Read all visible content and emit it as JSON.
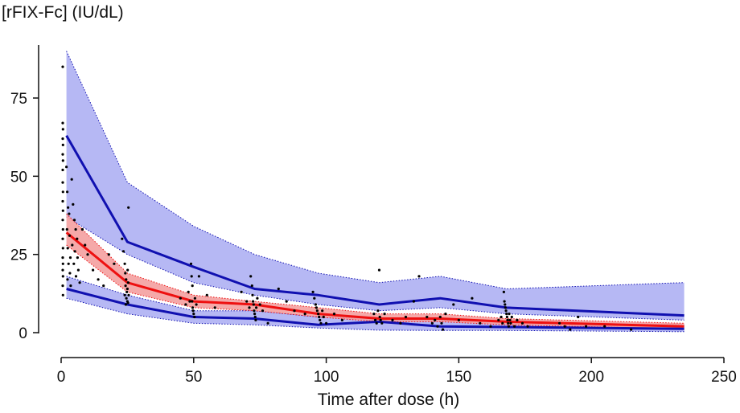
{
  "chart_data": {
    "type": "line",
    "title": "",
    "ylabel": "[rFIX-Fc] (IU/dL)",
    "xlabel": "Time after dose (h)",
    "xlim": [
      0,
      250
    ],
    "ylim": [
      0,
      95
    ],
    "xticks": [
      0,
      50,
      100,
      150,
      200,
      250
    ],
    "yticks": [
      0,
      25,
      50,
      75
    ],
    "grid": false,
    "colors": {
      "outer_band": "#aeb0f3",
      "outer_line": "#1010b0",
      "median_band": "#f4a0a0",
      "median_line": "#ee1010",
      "points": "#000000"
    },
    "bands": [
      {
        "role": "upper-percentile-band",
        "x": [
          2,
          25,
          50,
          73,
          97,
          120,
          143,
          168,
          235
        ],
        "lower": [
          1,
          1,
          1,
          1,
          1,
          1,
          1,
          1,
          1
        ],
        "upper": [
          1,
          1,
          1,
          1,
          1,
          1,
          1,
          1,
          1
        ]
      }
    ],
    "percentile_bands": {
      "x": [
        2,
        25,
        50,
        73,
        97,
        120,
        143,
        168,
        235
      ],
      "upper_band": {
        "low": [
          37,
          25,
          16,
          12,
          9,
          7,
          8,
          6,
          4
        ],
        "high": [
          90,
          48,
          34,
          25,
          19,
          16,
          18,
          14,
          16
        ]
      },
      "median_band": {
        "low": [
          28,
          13,
          8,
          7,
          5,
          3.5,
          3.5,
          2.5,
          1.2
        ],
        "high": [
          38,
          19,
          12,
          10,
          8,
          6,
          6,
          4.5,
          3
        ]
      },
      "lower_band": {
        "low": [
          11,
          6,
          3,
          2.5,
          1.5,
          0.8,
          0.7,
          0.7,
          0.3
        ],
        "high": [
          18,
          12,
          7,
          7,
          5,
          4.5,
          4,
          3.5,
          2.5
        ]
      }
    },
    "series": [
      {
        "role": "upper-percentile",
        "x": [
          2,
          25,
          50,
          73,
          97,
          120,
          143,
          168,
          235
        ],
        "y": [
          63,
          29,
          21,
          14,
          12,
          9,
          11,
          8,
          5.5
        ]
      },
      {
        "role": "median",
        "x": [
          2,
          25,
          50,
          73,
          97,
          120,
          143,
          168,
          235
        ],
        "y": [
          32,
          16,
          10,
          9,
          6,
          4.5,
          4.5,
          3.5,
          2
        ]
      },
      {
        "role": "lower-percentile",
        "x": [
          2,
          25,
          50,
          73,
          97,
          120,
          143,
          168,
          235
        ],
        "y": [
          14,
          9,
          5,
          4.5,
          2.5,
          3.5,
          2,
          1.8,
          1.2
        ]
      }
    ],
    "observations": [
      [
        0.6,
        85
      ],
      [
        0.6,
        67
      ],
      [
        0.7,
        65
      ],
      [
        0.6,
        62
      ],
      [
        0.7,
        60
      ],
      [
        0.6,
        57
      ],
      [
        0.7,
        55
      ],
      [
        0.6,
        52
      ],
      [
        0.6,
        48
      ],
      [
        0.7,
        45
      ],
      [
        0.6,
        42
      ],
      [
        0.7,
        39
      ],
      [
        0.6,
        36
      ],
      [
        0.7,
        33
      ],
      [
        0.6,
        30
      ],
      [
        0.7,
        27
      ],
      [
        0.6,
        24
      ],
      [
        0.7,
        22
      ],
      [
        0.6,
        20
      ],
      [
        0.7,
        18
      ],
      [
        0.6,
        15
      ],
      [
        0.7,
        12
      ],
      [
        2,
        53
      ],
      [
        2.3,
        45
      ],
      [
        2.6,
        40
      ],
      [
        3,
        38
      ],
      [
        2.2,
        33
      ],
      [
        3.2,
        31
      ],
      [
        2.5,
        27
      ],
      [
        3.5,
        24
      ],
      [
        2.8,
        22
      ],
      [
        3.3,
        19
      ],
      [
        2.4,
        17
      ],
      [
        3.6,
        15
      ],
      [
        4,
        49
      ],
      [
        4.5,
        41
      ],
      [
        5,
        36
      ],
      [
        5.5,
        33
      ],
      [
        6,
        30
      ],
      [
        4.2,
        28
      ],
      [
        5.2,
        26
      ],
      [
        6.2,
        24
      ],
      [
        4.8,
        22
      ],
      [
        6.5,
        20
      ],
      [
        5.6,
        18
      ],
      [
        7,
        16
      ],
      [
        8,
        33
      ],
      [
        9,
        28
      ],
      [
        10,
        25
      ],
      [
        12,
        20
      ],
      [
        14,
        17
      ],
      [
        16,
        15
      ],
      [
        18,
        25
      ],
      [
        20,
        22
      ],
      [
        23,
        30
      ],
      [
        23.5,
        26
      ],
      [
        24,
        22
      ],
      [
        24.2,
        19
      ],
      [
        24.5,
        17
      ],
      [
        24.3,
        15
      ],
      [
        24.8,
        13
      ],
      [
        24,
        12
      ],
      [
        24.6,
        11
      ],
      [
        25,
        10
      ],
      [
        24.4,
        9
      ],
      [
        25.2,
        9.5
      ],
      [
        25.5,
        12
      ],
      [
        25,
        14
      ],
      [
        25.3,
        16
      ],
      [
        25.1,
        20
      ],
      [
        25.4,
        40
      ],
      [
        45,
        11
      ],
      [
        47,
        9
      ],
      [
        48,
        13
      ],
      [
        48.5,
        10
      ],
      [
        49,
        22
      ],
      [
        49.2,
        18
      ],
      [
        49.5,
        15
      ],
      [
        49.4,
        10
      ],
      [
        49.6,
        8
      ],
      [
        49.8,
        7
      ],
      [
        50,
        6
      ],
      [
        50.3,
        5
      ],
      [
        50.5,
        11
      ],
      [
        51,
        9
      ],
      [
        52,
        18
      ],
      [
        55,
        12
      ],
      [
        58,
        8
      ],
      [
        68,
        13
      ],
      [
        70,
        10
      ],
      [
        71,
        8
      ],
      [
        71.5,
        18
      ],
      [
        72,
        15
      ],
      [
        72.2,
        12
      ],
      [
        72.4,
        10
      ],
      [
        72.6,
        9
      ],
      [
        72.8,
        7
      ],
      [
        73,
        6
      ],
      [
        73.2,
        5
      ],
      [
        73.4,
        4
      ],
      [
        73.6,
        8
      ],
      [
        74,
        11
      ],
      [
        75,
        9
      ],
      [
        76,
        7
      ],
      [
        78,
        3
      ],
      [
        82,
        14
      ],
      [
        85,
        10
      ],
      [
        88,
        7
      ],
      [
        92,
        6
      ],
      [
        95,
        13
      ],
      [
        95.5,
        11
      ],
      [
        96,
        9
      ],
      [
        96.3,
        8
      ],
      [
        96.6,
        7
      ],
      [
        97,
        6
      ],
      [
        97.3,
        5
      ],
      [
        97.6,
        4
      ],
      [
        98,
        3
      ],
      [
        98.5,
        7
      ],
      [
        99,
        5
      ],
      [
        100,
        3
      ],
      [
        103,
        6
      ],
      [
        106,
        4
      ],
      [
        118,
        6
      ],
      [
        118.5,
        4
      ],
      [
        119,
        3
      ],
      [
        119.5,
        7
      ],
      [
        120,
        20
      ],
      [
        120.2,
        5
      ],
      [
        120.5,
        4
      ],
      [
        121,
        3
      ],
      [
        122,
        6
      ],
      [
        125,
        4
      ],
      [
        128,
        3
      ],
      [
        130,
        5
      ],
      [
        133,
        10
      ],
      [
        135,
        18
      ],
      [
        138,
        5
      ],
      [
        140,
        3
      ],
      [
        141,
        4
      ],
      [
        142,
        2
      ],
      [
        143,
        5
      ],
      [
        143.5,
        3
      ],
      [
        144,
        1
      ],
      [
        145,
        6
      ],
      [
        148,
        9
      ],
      [
        150,
        4
      ],
      [
        155,
        11
      ],
      [
        158,
        3
      ],
      [
        162,
        2
      ],
      [
        165,
        4
      ],
      [
        166,
        5
      ],
      [
        166.5,
        3
      ],
      [
        167,
        13
      ],
      [
        167.2,
        10
      ],
      [
        167.4,
        9
      ],
      [
        167.6,
        8
      ],
      [
        167.8,
        7
      ],
      [
        168,
        6
      ],
      [
        168.2,
        5
      ],
      [
        168.4,
        4
      ],
      [
        168.6,
        3
      ],
      [
        168.8,
        2
      ],
      [
        169,
        6
      ],
      [
        169.3,
        4
      ],
      [
        169.6,
        3
      ],
      [
        170,
        5
      ],
      [
        171,
        2
      ],
      [
        172,
        4
      ],
      [
        174,
        3
      ],
      [
        176,
        2
      ],
      [
        188,
        3
      ],
      [
        190,
        2
      ],
      [
        192,
        1
      ],
      [
        195,
        5
      ],
      [
        198,
        2
      ],
      [
        205,
        2
      ],
      [
        215,
        1
      ]
    ]
  }
}
